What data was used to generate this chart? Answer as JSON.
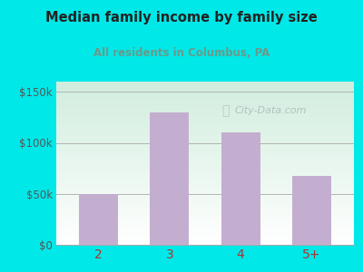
{
  "title": "Median family income by family size",
  "subtitle": "All residents in Columbus, PA",
  "categories": [
    "2",
    "3",
    "4",
    "5+"
  ],
  "values": [
    50000,
    130000,
    110000,
    68000
  ],
  "bar_color": "#c4aed0",
  "title_color": "#222222",
  "subtitle_color": "#6a9a8a",
  "bg_color": "#00e8e8",
  "plot_bg_top_left": "#d4edda",
  "plot_bg_top_right": "#e8f5f0",
  "plot_bg_bottom": "#ffffff",
  "yticks": [
    0,
    50000,
    100000,
    150000
  ],
  "ytick_labels": [
    "$0",
    "$50k",
    "$100k",
    "$150k"
  ],
  "xlabel_color": "#aa3333",
  "ylabel_color": "#555555",
  "axis_color": "#aaaaaa",
  "watermark": "City-Data.com",
  "watermark_color": "#aabbbb"
}
